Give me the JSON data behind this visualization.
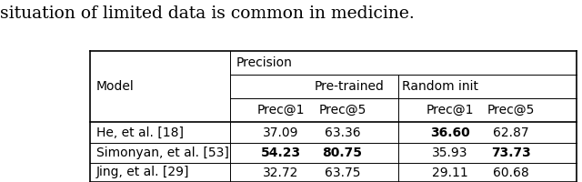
{
  "title_text": "situation of limited data is common in medicine.",
  "title_fontsize": 13.5,
  "col_model_label": "Model",
  "col_precision_label": "Precision",
  "col_pretrained_label": "Pre-trained",
  "col_randominit_label": "Random init",
  "col_headers": [
    "Prec@1",
    "Prec@5",
    "Prec@1",
    "Prec@5"
  ],
  "rows": [
    {
      "model": "He, et al. [18]",
      "values": [
        "37.09",
        "63.36",
        "36.60",
        "62.87"
      ],
      "bold": [
        false,
        false,
        true,
        false
      ]
    },
    {
      "model": "Simonyan, et al. [53]",
      "values": [
        "54.23",
        "80.75",
        "35.93",
        "73.73"
      ],
      "bold": [
        true,
        true,
        false,
        true
      ]
    },
    {
      "model": "Jing, et al. [29]",
      "values": [
        "32.72",
        "63.75",
        "29.11",
        "60.68"
      ],
      "bold": [
        false,
        false,
        false,
        false
      ]
    }
  ],
  "bg_color": "#ffffff",
  "text_color": "#000000",
  "data_fontsize": 10,
  "header_fontsize": 10
}
